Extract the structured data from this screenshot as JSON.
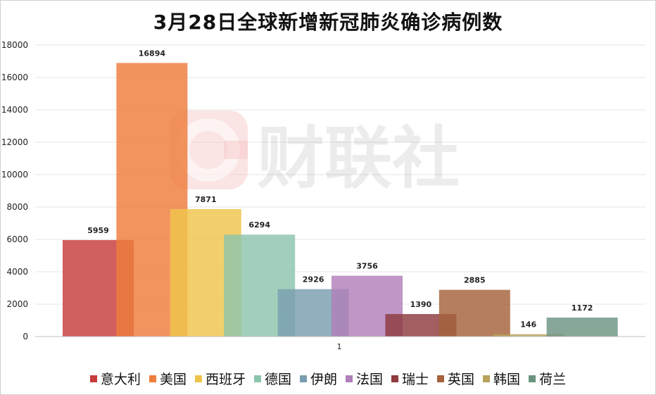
{
  "chart_data": {
    "type": "bar",
    "title": "3月28日全球新增新冠肺炎确诊病例数",
    "xlabel": "",
    "ylabel": "",
    "categories": [
      "1"
    ],
    "ylim": [
      0,
      18000
    ],
    "yticks": [
      0,
      2000,
      4000,
      6000,
      8000,
      10000,
      12000,
      14000,
      16000,
      18000
    ],
    "grid": true,
    "legend_position": "bottom",
    "series": [
      {
        "name": "意大利",
        "values": [
          5959
        ],
        "color": "#c83c3c"
      },
      {
        "name": "美国",
        "values": [
          16894
        ],
        "color": "#ee7d3c"
      },
      {
        "name": "西班牙",
        "values": [
          7871
        ],
        "color": "#efc44c"
      },
      {
        "name": "德国",
        "values": [
          6294
        ],
        "color": "#8dc4ac"
      },
      {
        "name": "伊朗",
        "values": [
          2926
        ],
        "color": "#7a9db0"
      },
      {
        "name": "法国",
        "values": [
          3756
        ],
        "color": "#b17fba"
      },
      {
        "name": "瑞士",
        "values": [
          1390
        ],
        "color": "#8e3a3e"
      },
      {
        "name": "英国",
        "values": [
          2885
        ],
        "color": "#a5623c"
      },
      {
        "name": "韩国",
        "values": [
          146
        ],
        "color": "#b8a25c"
      },
      {
        "name": "荷兰",
        "values": [
          1172
        ],
        "color": "#6b9480"
      }
    ]
  },
  "watermark": {
    "logo_icon": "cailianshe-c-logo",
    "text": "财联社"
  }
}
